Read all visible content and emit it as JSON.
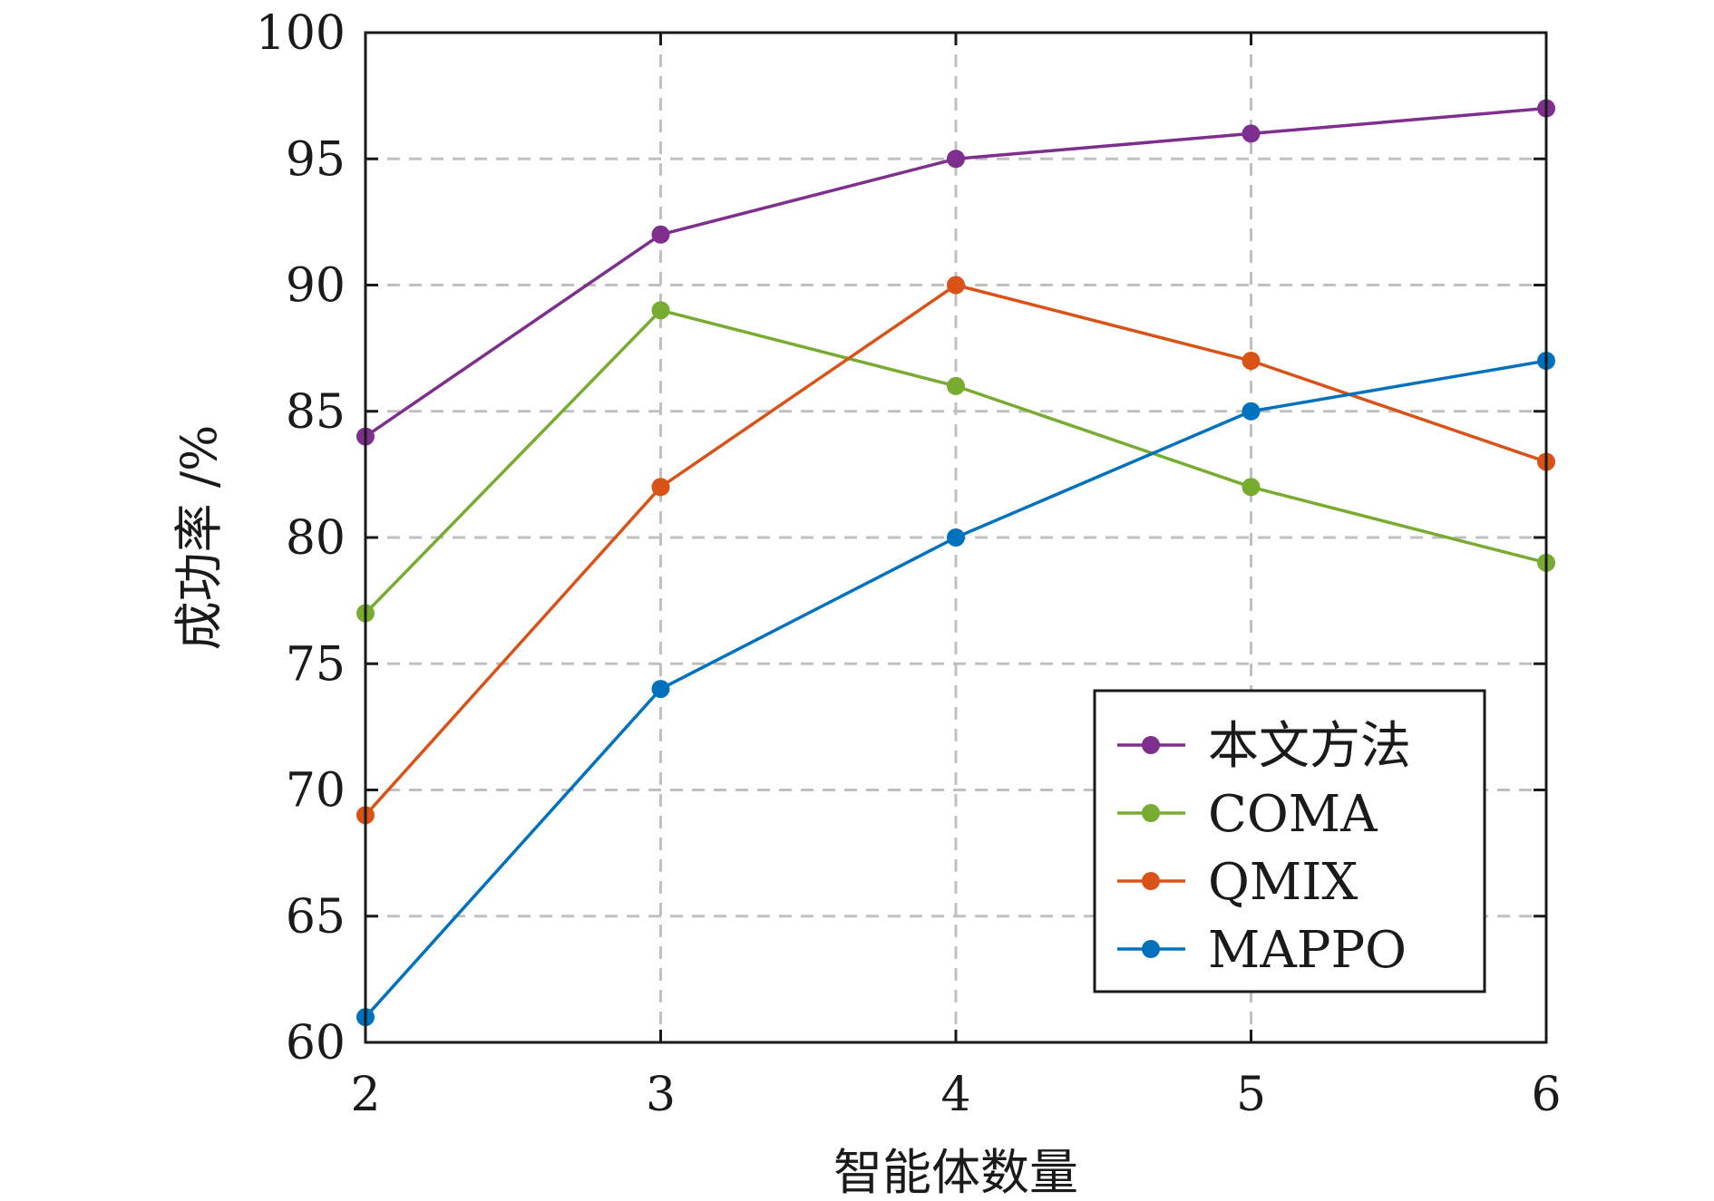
{
  "chart_data": {
    "type": "line",
    "xlabel": "智能体数量",
    "ylabel": "成功率 /%",
    "x": [
      2,
      3,
      4,
      5,
      6
    ],
    "xlim": [
      2,
      6
    ],
    "ylim": [
      60,
      100
    ],
    "x_ticks": [
      "2",
      "3",
      "4",
      "5",
      "6"
    ],
    "y_ticks": [
      "60",
      "65",
      "70",
      "75",
      "80",
      "85",
      "90",
      "95",
      "100"
    ],
    "grid": true,
    "legend_position": "bottom-right",
    "series": [
      {
        "name": "本文方法",
        "color": "#7e2f8e",
        "values": [
          84,
          92,
          95,
          96,
          97
        ]
      },
      {
        "name": "COMA",
        "color": "#77ac30",
        "values": [
          77,
          89,
          86,
          82,
          79
        ]
      },
      {
        "name": "QMIX",
        "color": "#d95319",
        "values": [
          69,
          82,
          90,
          87,
          83
        ]
      },
      {
        "name": "MAPPO",
        "color": "#0072bd",
        "values": [
          61,
          74,
          80,
          85,
          87
        ]
      }
    ]
  }
}
